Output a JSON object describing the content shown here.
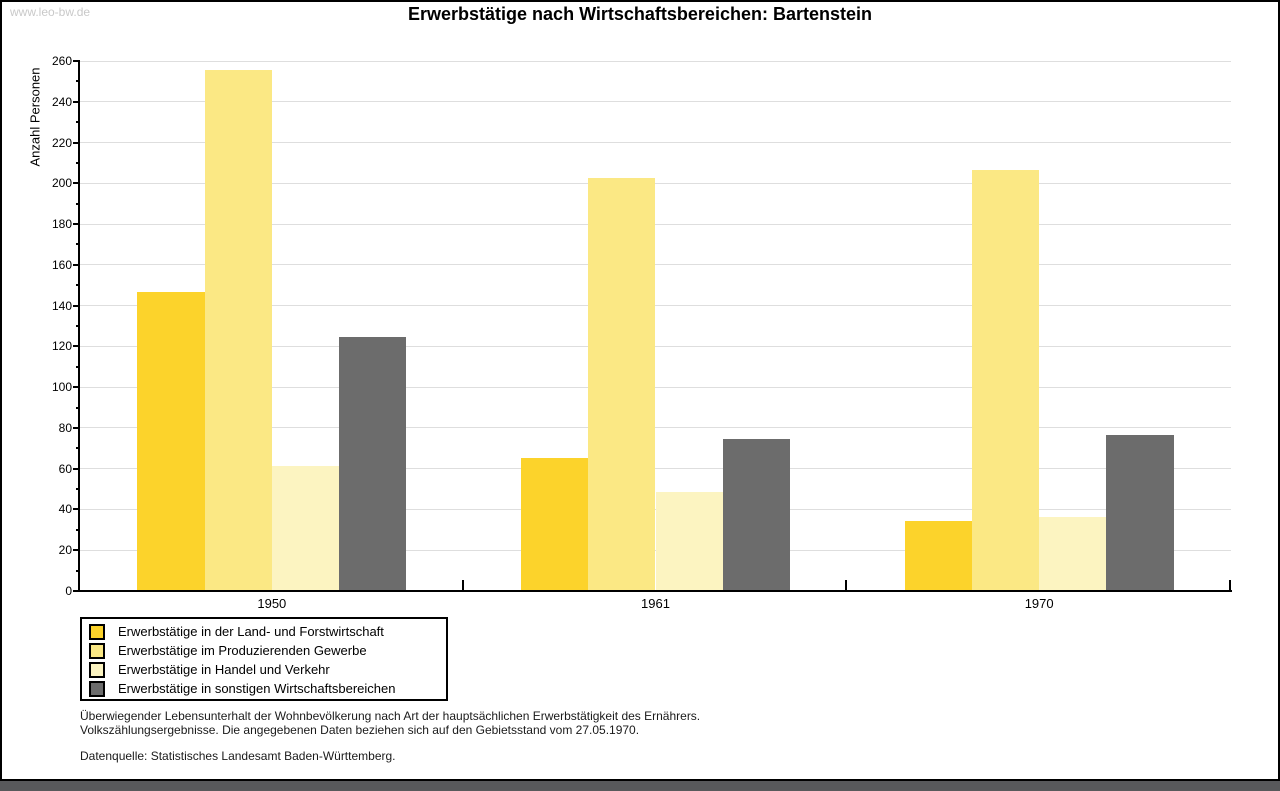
{
  "window": {
    "watermark": "www.leo-bw.de"
  },
  "header": {
    "title": "Erwerbstätige nach Wirtschaftsbereichen: Bartenstein"
  },
  "chart_data": {
    "type": "bar",
    "title": "Erwerbstätige nach Wirtschaftsbereichen: Bartenstein",
    "ylabel": "Anzahl Personen",
    "xlabel": "",
    "categories": [
      "1950",
      "1961",
      "1970"
    ],
    "series": [
      {
        "name": "Erwerbstätige in der Land- und Forstwirtschaft",
        "color": "#FCD32B",
        "values": [
          146,
          65,
          34
        ]
      },
      {
        "name": "Erwerbstätige im Produzierenden Gewerbe",
        "color": "#FBE884",
        "values": [
          255,
          202,
          206
        ]
      },
      {
        "name": "Erwerbstätige in Handel und Verkehr",
        "color": "#FCF4C1",
        "values": [
          61,
          48,
          36
        ]
      },
      {
        "name": "Erwerbstätige in sonstigen Wirtschaftsbereichen",
        "color": "#6C6C6C",
        "values": [
          124,
          74,
          76
        ]
      }
    ],
    "ylim": [
      0,
      260
    ],
    "ytick_step": 20,
    "ytick_minor_step": 10,
    "grid": true,
    "legend_position": "bottom-left"
  },
  "footnote": {
    "line1": "Überwiegender Lebensunterhalt der Wohnbevölkerung nach Art der hauptsächlichen Erwerbstätigkeit des Ernährers.",
    "line2": "Volkszählungsergebnisse. Die angegebenen Daten beziehen sich auf den Gebietsstand vom 27.05.1970.",
    "source": "Datenquelle: Statistisches Landesamt Baden-Württemberg."
  },
  "colors": {
    "grid": "#DEDEDE",
    "axis": "#000000",
    "watermark": "#C9C9C9",
    "bottom_bar": "#58595B"
  }
}
